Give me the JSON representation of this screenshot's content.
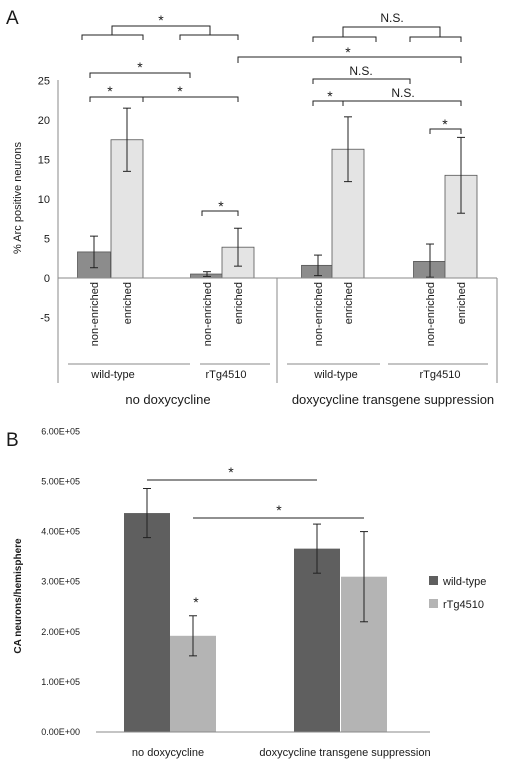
{
  "chart_data": [
    {
      "panel": "A",
      "type": "bar",
      "ylabel": "% Arc positive neurons",
      "ylim": [
        -5,
        25
      ],
      "yticks": [
        "-5",
        "0",
        "5",
        "10",
        "15",
        "20",
        "25"
      ],
      "grid": false,
      "legend": "none",
      "colors": {
        "non-enriched": "#8c8c8c",
        "enriched": "#e4e4e4"
      },
      "categories": [
        "non-enriched",
        "enriched",
        "non-enriched",
        "enriched",
        "non-enriched",
        "enriched",
        "non-enriched",
        "enriched"
      ],
      "values": [
        3.3,
        17.5,
        0.5,
        3.9,
        1.6,
        16.3,
        2.1,
        13.0
      ],
      "errors": [
        2.0,
        4.0,
        0.3,
        2.4,
        1.3,
        4.1,
        2.2,
        4.8
      ],
      "genotype_labels": [
        "wild-type",
        "rTg4510",
        "wild-type",
        "rTg4510"
      ],
      "condition_labels": [
        "no doxycycline",
        "doxycycline transgene suppression"
      ],
      "annotations": [
        "*",
        "*",
        "*",
        "*",
        "*",
        "N.S.",
        "*",
        "N.S.",
        "*",
        "N.S.",
        "*"
      ]
    },
    {
      "panel": "B",
      "type": "bar",
      "ylabel": "CA neurons/hemisphere",
      "ylim": [
        0,
        600000
      ],
      "yticks": [
        "0.00E+00",
        "1.00E+05",
        "2.00E+05",
        "3.00E+05",
        "4.00E+05",
        "5.00E+05",
        "6.00E+05"
      ],
      "grid": false,
      "legend": "right",
      "categories": [
        "no doxycycline",
        "doxycycline transgene suppression"
      ],
      "series": [
        {
          "name": "wild-type",
          "color": "#5f5f5f",
          "values": [
            437000,
            366000
          ],
          "errors": [
            49000,
            49000
          ]
        },
        {
          "name": "rTg4510",
          "color": "#b4b4b4",
          "values": [
            192000,
            310000
          ],
          "errors": [
            40000,
            90000
          ]
        }
      ],
      "annotations": [
        "*",
        "*",
        "*"
      ]
    }
  ]
}
